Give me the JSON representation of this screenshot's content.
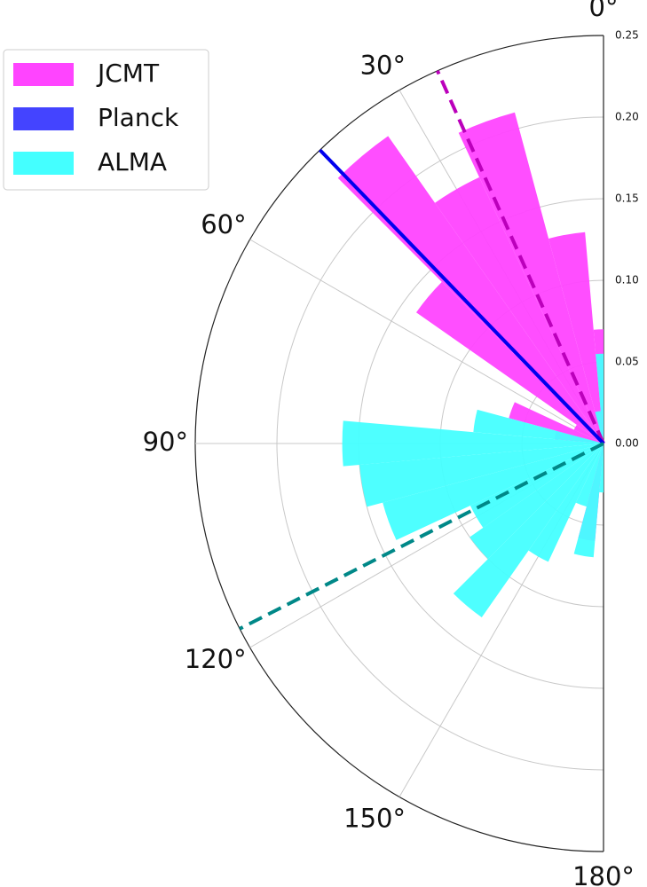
{
  "chart_data": {
    "type": "polar_histogram",
    "bins": [
      0,
      5,
      15,
      25,
      35,
      45,
      55,
      65,
      75,
      85,
      95,
      105,
      115,
      125,
      135,
      145,
      155,
      165,
      175,
      180
    ],
    "series": [
      {
        "name": "JCMT",
        "color": "#ff44ff",
        "values": [
          0.07,
          0.13,
          0.21,
          0.18,
          0.23,
          0.14,
          0.02,
          0.06,
          0.03,
          0,
          0,
          0,
          0,
          0,
          0,
          0,
          0,
          0.06,
          0
        ],
        "mean": 24,
        "line_color": "#bb00bb",
        "line_style": "dashed"
      },
      {
        "name": "Planck",
        "color": "#4444ff",
        "angle": 44,
        "line_color": "#0000ee",
        "line_style": "solid"
      },
      {
        "name": "ALMA",
        "color": "#44ffff",
        "values": [
          0.055,
          0.02,
          0,
          0,
          0,
          0,
          0,
          0,
          0.08,
          0.16,
          0.15,
          0.14,
          0.09,
          0.1,
          0.13,
          0.08,
          0.04,
          0.07,
          0.03
        ],
        "mean": 117,
        "line_color": "#008888",
        "line_style": "dashed"
      }
    ],
    "rlim": [
      0,
      0.25
    ],
    "rticks": [
      {
        "value": 0,
        "label": "0.00"
      },
      {
        "value": 0.05,
        "label": "0.05"
      },
      {
        "value": 0.1,
        "label": "0.10"
      },
      {
        "value": 0.15,
        "label": "0.15"
      },
      {
        "value": 0.2,
        "label": "0.20"
      },
      {
        "value": 0.25,
        "label": "0.25"
      }
    ],
    "xticks": [
      {
        "value": 0,
        "label": "0°"
      },
      {
        "value": 30,
        "label": "30°"
      },
      {
        "value": 60,
        "label": "60°"
      },
      {
        "value": 90,
        "label": "90°"
      },
      {
        "value": 120,
        "label": "120°"
      },
      {
        "value": 150,
        "label": "150°"
      },
      {
        "value": 180,
        "label": "180°"
      }
    ],
    "grid": true,
    "legend": "upper left"
  }
}
